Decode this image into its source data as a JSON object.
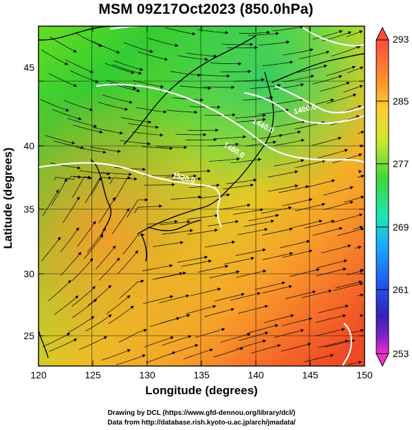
{
  "title": "MSM 09Z17Oct2023 (850.0hPa)",
  "x_axis": {
    "label": "Longitude (degrees)",
    "range": [
      120,
      150
    ],
    "ticks": [
      "120",
      "125",
      "130",
      "135",
      "140",
      "145",
      "150"
    ]
  },
  "y_axis": {
    "label": "Latitude  (degrees)",
    "range": [
      22.4,
      48
    ],
    "ticks": [
      "25",
      "30",
      "35",
      "40",
      "45"
    ]
  },
  "colorbar": {
    "ticks": [
      "293",
      "285",
      "277",
      "269",
      "261",
      "253"
    ],
    "colors": [
      "#ff4d40",
      "#ff8c2a",
      "#ffcc33",
      "#cfe82e",
      "#3fd63a",
      "#1ce6b0",
      "#19a8ff",
      "#2255ee",
      "#3322bb",
      "#8a22cc",
      "#ee33cc"
    ]
  },
  "contour_labels": [
    "1400.0",
    "1440.0",
    "1480.0",
    "1520.0"
  ],
  "credits": [
    "Drawing by DCL (https://www.gfd-dennou.org/library/dcl/)",
    "Data from http://database.rish.kyoto-u.ac.jp/arch/jmadata/"
  ]
}
